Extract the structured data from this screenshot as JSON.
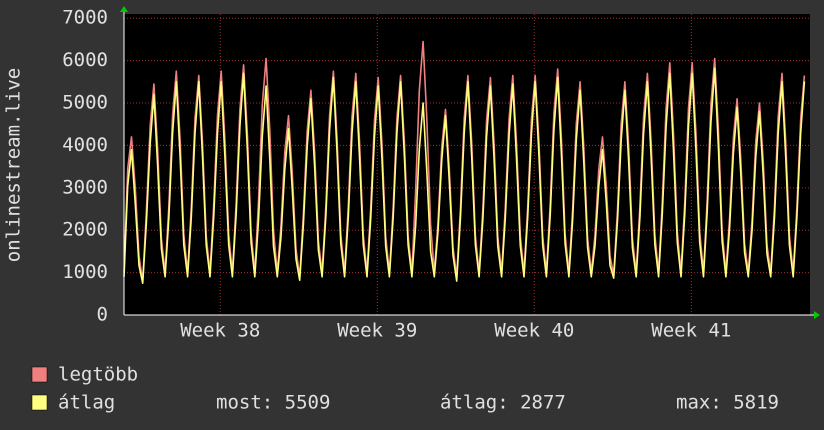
{
  "chart_data": {
    "type": "line",
    "y_label": "onlinestream.live",
    "x": [
      0,
      4,
      8,
      12,
      16,
      20,
      24,
      28,
      32,
      36,
      40,
      44,
      48,
      52,
      56,
      60,
      64,
      68,
      72,
      76,
      80,
      84,
      88,
      92,
      96,
      100,
      104,
      108,
      112,
      116,
      120,
      124,
      128,
      132,
      136,
      140,
      144,
      148,
      152,
      156,
      160,
      164,
      168,
      172,
      176,
      180,
      184,
      188,
      192,
      196,
      200,
      204,
      208,
      212,
      216,
      220,
      224,
      228,
      232,
      236,
      240,
      244,
      248,
      252,
      256,
      260,
      264,
      268,
      272,
      276,
      280,
      284,
      288,
      292,
      296,
      300,
      304,
      308,
      312,
      316,
      320,
      324,
      328,
      332,
      336,
      340,
      344,
      348,
      352,
      356,
      360,
      364,
      368,
      372,
      376,
      380,
      384,
      388,
      392,
      396,
      400,
      404,
      408,
      412,
      416,
      420,
      424,
      428,
      432,
      436,
      440,
      444,
      448,
      452,
      456,
      460,
      464,
      468,
      472,
      476,
      480,
      484,
      488,
      492,
      496,
      500,
      504,
      508,
      512,
      516,
      520,
      524,
      528,
      532,
      536,
      540,
      544,
      548,
      552,
      556,
      560,
      564,
      568,
      572,
      576,
      580,
      584,
      588,
      592,
      596,
      600,
      604,
      608,
      612,
      616,
      620,
      624,
      628,
      632,
      636,
      640,
      644,
      648,
      652,
      656,
      660,
      664,
      668,
      672,
      676,
      680,
      684,
      688,
      692,
      696,
      700,
      704,
      708,
      712,
      716,
      720,
      724,
      728
    ],
    "series": [
      {
        "name": "legtöbb",
        "color": "#f08080",
        "values": [
          1000,
          3444,
          4200,
          3024,
          1386,
          800,
          2453,
          4469,
          5450,
          3924,
          1799,
          1000,
          2588,
          4715,
          5750,
          4140,
          1898,
          1000,
          2543,
          4633,
          5650,
          4068,
          1865,
          1000,
          2588,
          4715,
          5750,
          4140,
          1898,
          1000,
          2655,
          4838,
          5900,
          4248,
          1947,
          1000,
          2723,
          4961,
          6050,
          4356,
          1997,
          1000,
          2115,
          3854,
          4700,
          3384,
          1551,
          900,
          2385,
          4346,
          5300,
          3816,
          1749,
          1000,
          2588,
          4715,
          5750,
          4140,
          1898,
          1000,
          2565,
          4674,
          5700,
          4104,
          1881,
          1000,
          2520,
          4592,
          5600,
          4032,
          1848,
          1000,
          2543,
          4633,
          5650,
          4068,
          1865,
          1000,
          2903,
          5289,
          6450,
          4644,
          2129,
          1000,
          2183,
          3977,
          4850,
          3492,
          1601,
          900,
          2543,
          4633,
          5650,
          4068,
          1865,
          1000,
          2520,
          4592,
          5600,
          4032,
          1848,
          1000,
          2543,
          4633,
          5650,
          4068,
          1865,
          1000,
          2543,
          4633,
          5650,
          4068,
          1865,
          1000,
          2610,
          4756,
          5800,
          4176,
          1914,
          1000,
          2475,
          4510,
          5500,
          3960,
          1815,
          1000,
          1890,
          3444,
          4200,
          3024,
          1386,
          950,
          2475,
          4510,
          5500,
          3960,
          1815,
          1000,
          2565,
          4674,
          5700,
          4104,
          1881,
          1000,
          2678,
          4879,
          5950,
          4284,
          1964,
          1000,
          2678,
          4879,
          5950,
          4284,
          1964,
          1000,
          2723,
          4961,
          6050,
          4356,
          1997,
          1000,
          2295,
          4182,
          5100,
          3672,
          1683,
          1000,
          2250,
          4100,
          5000,
          3600,
          1650,
          1000,
          2565,
          4674,
          5700,
          4104,
          1881,
          1000,
          2543,
          4633,
          5650
        ]
      },
      {
        "name": "átlag",
        "color": "#ffff80",
        "values": [
          900,
          3042,
          3900,
          2652,
          1170,
          750,
          2184,
          4056,
          5200,
          3536,
          1560,
          900,
          2310,
          4290,
          5500,
          3740,
          1650,
          900,
          2310,
          4290,
          5500,
          3740,
          1650,
          900,
          2310,
          4290,
          5500,
          3740,
          1650,
          900,
          2394,
          4446,
          5700,
          3876,
          1710,
          900,
          2268,
          4212,
          5400,
          3672,
          1620,
          900,
          1848,
          3432,
          4400,
          2992,
          1320,
          820,
          2142,
          3978,
          5100,
          3468,
          1530,
          900,
          2352,
          4368,
          5600,
          3808,
          1680,
          900,
          2310,
          4290,
          5500,
          3740,
          1650,
          900,
          2268,
          4212,
          5400,
          3672,
          1620,
          900,
          2310,
          4290,
          5500,
          3740,
          1650,
          900,
          2100,
          3900,
          5000,
          3400,
          1500,
          900,
          1974,
          3666,
          4700,
          3196,
          1410,
          800,
          2310,
          4290,
          5500,
          3740,
          1650,
          900,
          2268,
          4212,
          5400,
          3672,
          1620,
          900,
          2289,
          4251,
          5450,
          3706,
          1635,
          900,
          2310,
          4290,
          5500,
          3740,
          1650,
          900,
          2352,
          4368,
          5600,
          3808,
          1680,
          900,
          2226,
          4134,
          5300,
          3604,
          1590,
          900,
          1638,
          3042,
          3900,
          2652,
          1170,
          870,
          2226,
          4134,
          5300,
          3604,
          1590,
          900,
          2310,
          4290,
          5500,
          3740,
          1650,
          900,
          2394,
          4446,
          5700,
          3876,
          1710,
          900,
          2394,
          4446,
          5700,
          3876,
          1710,
          900,
          2444,
          4539,
          5819,
          3957,
          1746,
          900,
          2058,
          3822,
          4900,
          3332,
          1470,
          900,
          2016,
          3744,
          4800,
          3264,
          1440,
          900,
          2310,
          4290,
          5500,
          3740,
          1650,
          900,
          2314,
          4297,
          5509
        ]
      }
    ],
    "xlim": [
      0,
      734
    ],
    "xticks": [
      {
        "value": 103,
        "label": "Week 38"
      },
      {
        "value": 271,
        "label": "Week 39"
      },
      {
        "value": 439,
        "label": "Week 40"
      },
      {
        "value": 607,
        "label": "Week 41"
      }
    ],
    "ylim": [
      0,
      7100
    ],
    "yticks": [
      0,
      1000,
      2000,
      3000,
      4000,
      5000,
      6000,
      7000
    ],
    "grid": true,
    "stats": [
      "most: 5509",
      "átlag: 2877",
      "max: 5819"
    ]
  }
}
